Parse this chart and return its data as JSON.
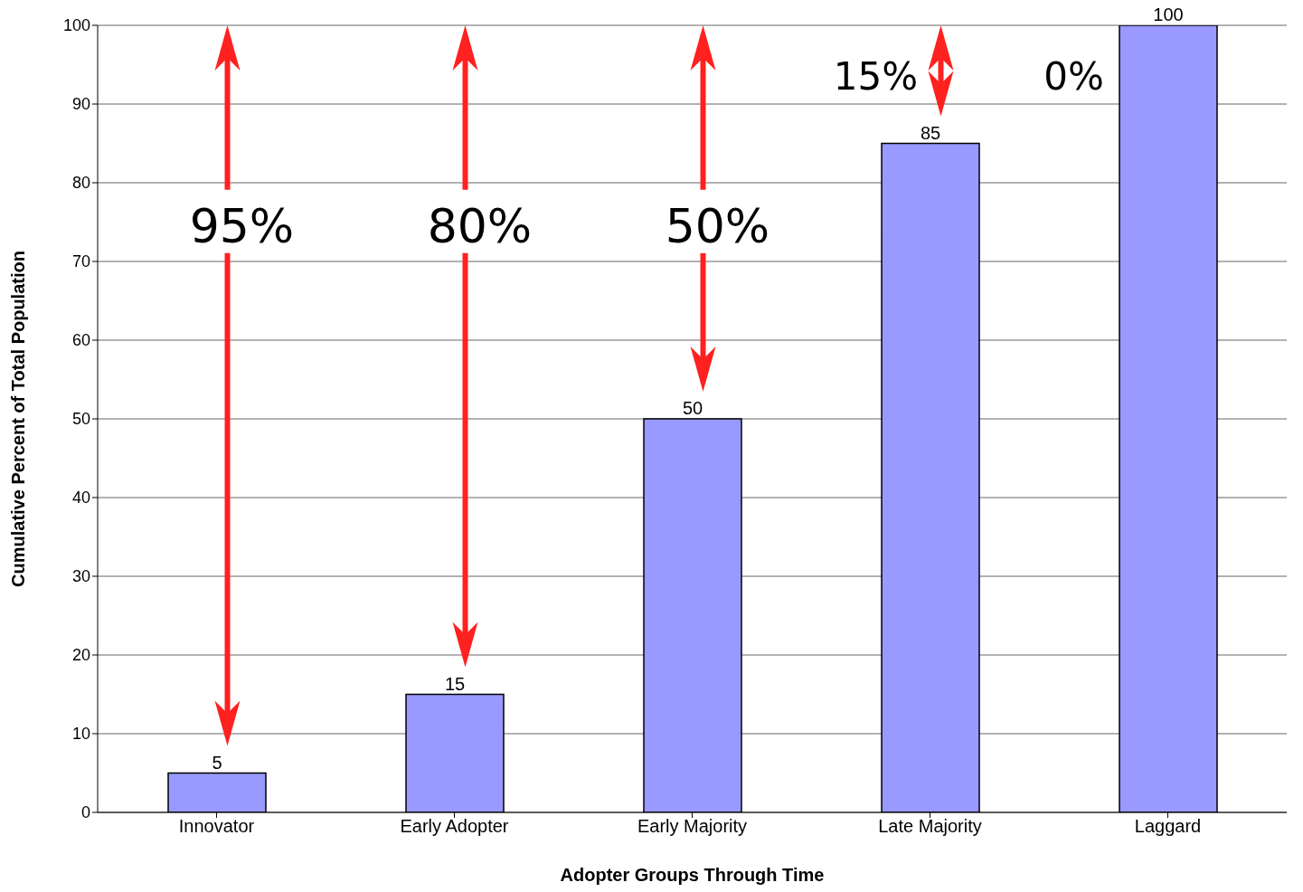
{
  "chart_data": {
    "type": "bar",
    "xlabel": "Adopter Groups Through Time",
    "ylabel": "Cumulative Percent of Total Population",
    "categories": [
      "Innovator",
      "Early Adopter",
      "Early Majority",
      "Late Majority",
      "Laggard"
    ],
    "values": [
      5,
      15,
      50,
      85,
      100
    ],
    "color": "#9999ff",
    "ylim": [
      0,
      100
    ],
    "yticks": [
      0,
      10,
      20,
      30,
      40,
      50,
      60,
      70,
      80,
      90,
      100
    ],
    "grid": "y",
    "data_labels": true,
    "annotations": [
      "95%",
      "80%",
      "50%",
      "15%",
      "0%"
    ]
  }
}
